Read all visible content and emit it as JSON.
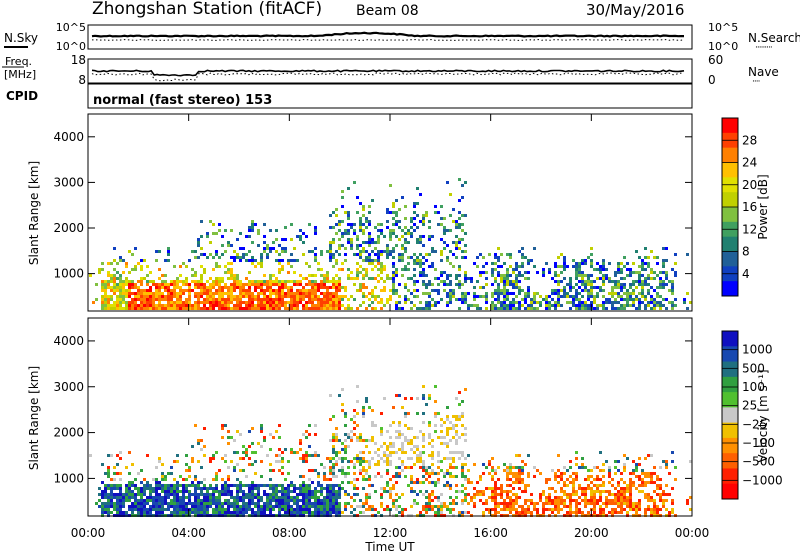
{
  "header": {
    "title": "Zhongshan Station (fitACF)",
    "beam": "Beam 08",
    "date": "30/May/2016"
  },
  "nsky_panel": {
    "left_label": "N.Sky",
    "right_label": "N.Search",
    "right_key": "·········",
    "left_ticks": [
      "10^5",
      "10^0"
    ],
    "right_ticks": [
      "10^5",
      "10^0"
    ]
  },
  "freq_panel": {
    "left_label_line1": "Freq.",
    "left_label_line2": "[MHz]",
    "right_label": "Nave",
    "right_key": "····",
    "left_ticks": [
      "18",
      "8"
    ],
    "right_ticks": [
      "60",
      "0"
    ]
  },
  "cpid": {
    "label": "CPID",
    "value": "normal (fast stereo) 153"
  },
  "chart_data": [
    {
      "type": "heatmap",
      "name": "power",
      "xlabel": "",
      "ylabel": "Slant Range [km]",
      "y_ticks": [
        "4000",
        "3000",
        "2000",
        "1000"
      ],
      "ylim": [
        180,
        4500
      ],
      "xlim_hours": [
        0,
        24
      ],
      "colorbar_label": "Power [dB]",
      "colorbar_ticks": [
        "28",
        "24",
        "20",
        "16",
        "12",
        "8",
        "4"
      ],
      "colorbar_colors": [
        "#ff0000",
        "#ff4000",
        "#ff8000",
        "#ffc000",
        "#e0e000",
        "#c0d000",
        "#80c040",
        "#40a060",
        "#208070",
        "#206098",
        "#1040c0",
        "#0000ff"
      ]
    },
    {
      "type": "heatmap",
      "name": "velocity",
      "xlabel": "Time UT",
      "ylabel": "Slant Range [km]",
      "y_ticks": [
        "4000",
        "3000",
        "2000",
        "1000"
      ],
      "ylim": [
        180,
        4500
      ],
      "xlim_hours": [
        0,
        24
      ],
      "x_ticks": [
        "00:00",
        "04:00",
        "08:00",
        "12:00",
        "16:00",
        "20:00",
        "00:00"
      ],
      "colorbar_label": "Velocity [m s⁻¹]",
      "colorbar_ticks": [
        "1000",
        "500",
        "100",
        "25",
        "−25",
        "−100",
        "−500",
        "−1000"
      ],
      "colorbar_colors": [
        "#1010c0",
        "#1848b0",
        "#207080",
        "#30a040",
        "#50c030",
        "#c8c8c8",
        "#f0c000",
        "#ff9000",
        "#ff6000",
        "#ff2000",
        "#ff0000"
      ]
    }
  ]
}
